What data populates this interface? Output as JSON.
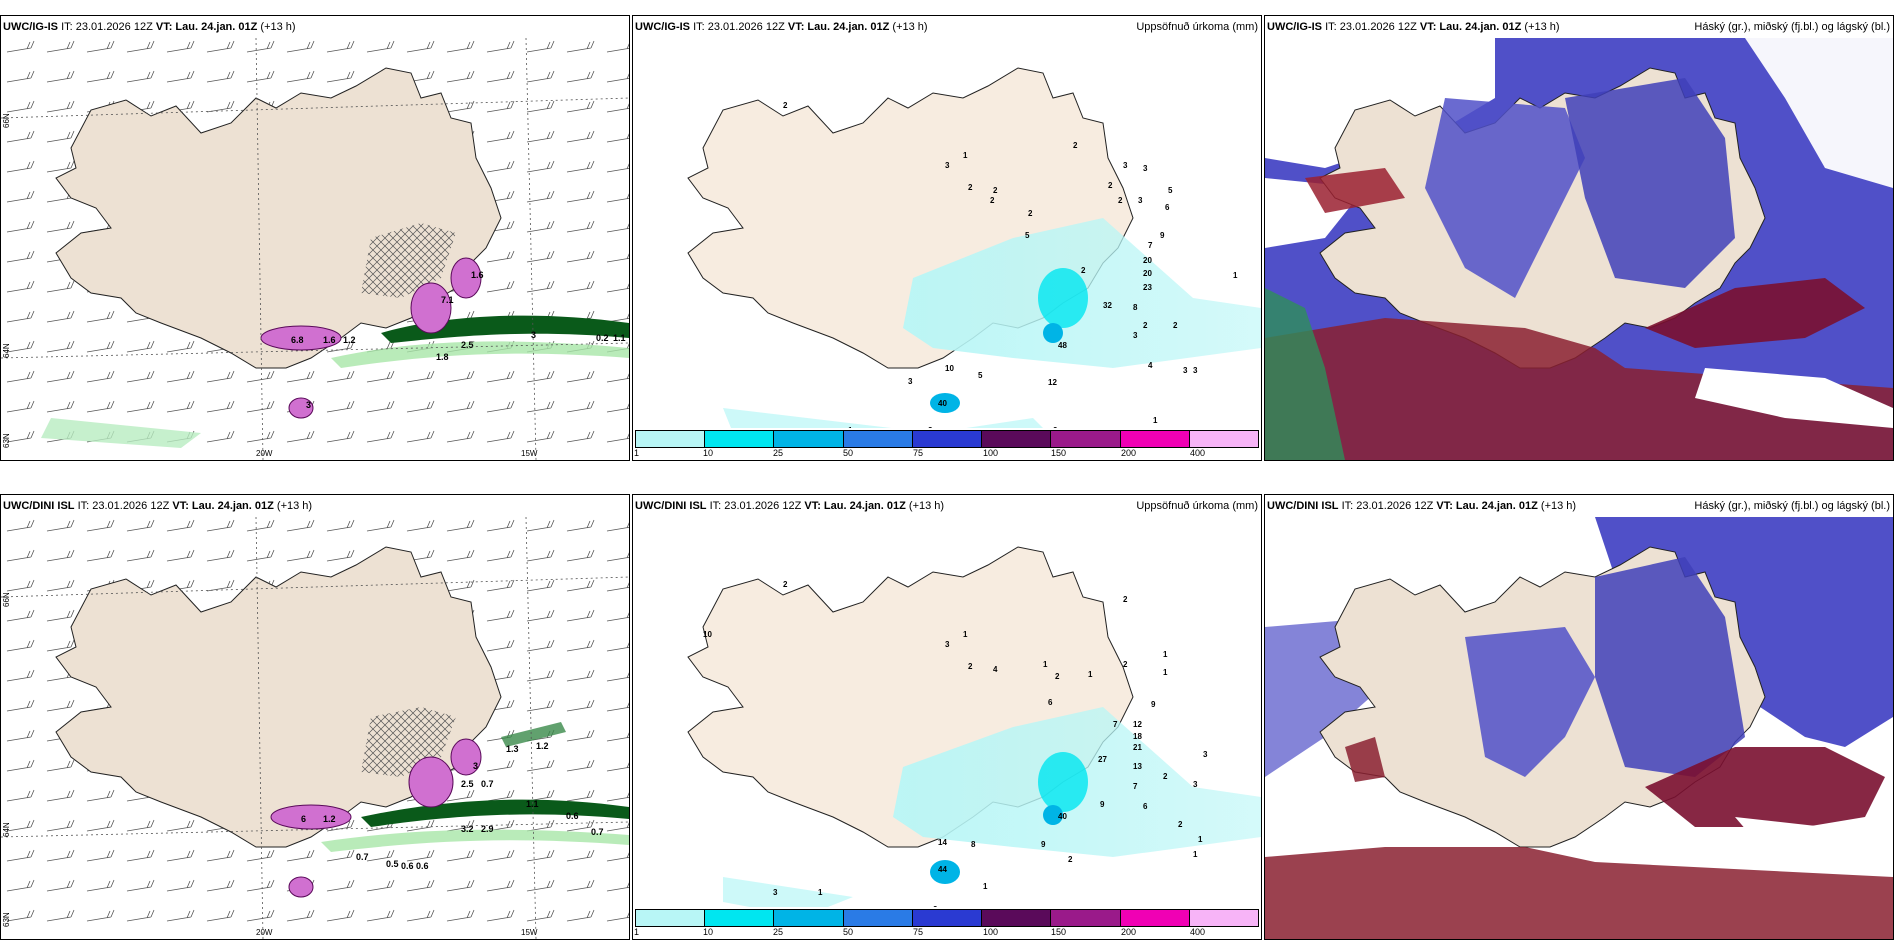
{
  "panels": [
    {
      "model": "UWC/IG-IS",
      "it": "IT: 23.01.2026 12Z",
      "vt_label": "VT:",
      "vt": "Lau. 24.jan. 01Z",
      "lead": "(+13 h)",
      "right": ""
    },
    {
      "model": "UWC/IG-IS",
      "it": "IT: 23.01.2026 12Z",
      "vt_label": "VT:",
      "vt": "Lau. 24.jan. 01Z",
      "lead": "(+13 h)",
      "right": "Uppsöfnuð úrkoma (mm)"
    },
    {
      "model": "UWC/IG-IS",
      "it": "IT: 23.01.2026 12Z",
      "vt_label": "VT:",
      "vt": "Lau. 24.jan. 01Z",
      "lead": "(+13 h)",
      "right": "Háský (gr.), miðský (fj.bl.) og lágský (bl.)"
    },
    {
      "model": "UWC/DINI ISL",
      "it": "IT: 23.01.2026 12Z",
      "vt_label": "VT:",
      "vt": "Lau. 24.jan. 01Z",
      "lead": "(+13 h)",
      "right": ""
    },
    {
      "model": "UWC/DINI ISL",
      "it": "IT: 23.01.2026 12Z",
      "vt_label": "VT:",
      "vt": "Lau. 24.jan. 01Z",
      "lead": "(+13 h)",
      "right": "Uppsöfnuð úrkoma (mm)"
    },
    {
      "model": "UWC/DINI ISL",
      "it": "IT: 23.01.2026 12Z",
      "vt_label": "VT:",
      "vt": "Lau. 24.jan. 01Z",
      "lead": "(+13 h)",
      "right": "Háský (gr.), miðský (fj.bl.) og lágský (bl.)"
    }
  ],
  "axes": {
    "lat_66": "66N",
    "lat_64": "64N",
    "lat_63": "63N",
    "lon_20": "20W",
    "lon_15": "15W"
  },
  "legend": {
    "labels": [
      "1",
      "10",
      "25",
      "50",
      "75",
      "100",
      "150",
      "200",
      "400"
    ],
    "colors": [
      "#b8f6f6",
      "#00e6f0",
      "#00b4e6",
      "#2a7be6",
      "#2a3ad2",
      "#5a0a5a",
      "#9a1a8a",
      "#f000b4",
      "#f7b4f7"
    ]
  },
  "precip_labels_top": [
    "2",
    "1",
    "3",
    "2",
    "2",
    "2",
    "5",
    "2",
    "2",
    "3",
    "2",
    "3",
    "2",
    "3",
    "5",
    "6",
    "7",
    "9",
    "20",
    "20",
    "23",
    "1",
    "32",
    "8",
    "48",
    "2",
    "3",
    "4",
    "10",
    "5",
    "12",
    "40",
    "3",
    "2",
    "1",
    "3",
    "2",
    "3",
    "2",
    "3",
    "1",
    "2"
  ],
  "precip_labels_bot": [
    "2",
    "1",
    "3",
    "2",
    "4",
    "1",
    "2",
    "1",
    "2",
    "2",
    "6",
    "1",
    "1",
    "9",
    "12",
    "18",
    "21",
    "7",
    "27",
    "13",
    "40",
    "7",
    "6",
    "9",
    "2",
    "14",
    "8",
    "44",
    "3",
    "1",
    "2",
    "3",
    "1",
    "2",
    "10",
    "9",
    "2",
    "3",
    "1",
    "1"
  ],
  "wind_labels_top": [
    "6.8",
    "3",
    "1.6",
    "1.2",
    "7.1",
    "2.5",
    "1.8",
    "1.6",
    "0.2",
    "1.1",
    "3"
  ],
  "wind_labels_bot": [
    "6",
    "1.2",
    "2.5",
    "3",
    "0.7",
    "3.2",
    "2.9",
    "1.3",
    "1.2",
    "1.1",
    "0.6",
    "0.5",
    "0.6",
    "0.6",
    "0.7",
    "0.7"
  ]
}
